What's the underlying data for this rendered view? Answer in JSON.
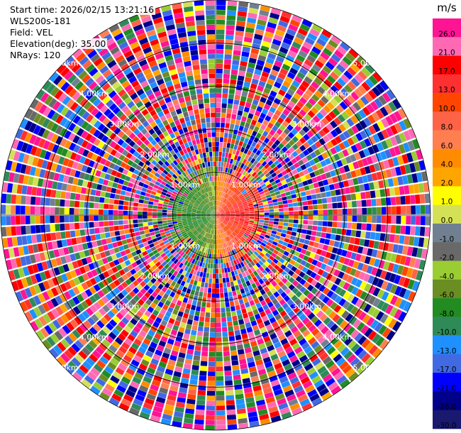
{
  "info": {
    "start_time": "Start time: 2026/02/15 13:21:16",
    "station": "WLS200s-181",
    "field": "Field: VEL",
    "elevation": "Elevation(deg): 35.00",
    "nrays": "NRays: 120"
  },
  "colorbar": {
    "unit": "m/s",
    "labels": [
      "26.0",
      "21.0",
      "17.0",
      "13.0",
      "10.0",
      "8.0",
      "6.0",
      "4.0",
      "2.0",
      "1.0",
      "0.0",
      "-1.0",
      "-2.0",
      "-4.0",
      "-6.0",
      "-8.0",
      "-10.0",
      "-13.0",
      "-17.0",
      "-21.0",
      "-26.0",
      "-30.0"
    ],
    "colors": [
      "#ff1493",
      "#ff69b4",
      "#ff0000",
      "#ff3030",
      "#ff4500",
      "#ff6347",
      "#ff7f50",
      "#ff8c00",
      "#ffa500",
      "#ffff00",
      "#d4e157",
      "#708090",
      "#696969",
      "#9acd32",
      "#6b8e23",
      "#228b22",
      "#2e8b57",
      "#1e90ff",
      "#4169e1",
      "#0000ff",
      "#00008b",
      "#191970"
    ]
  },
  "chart_data": {
    "type": "heatmap",
    "projection": "polar (PPI)",
    "field": "VEL",
    "units": "m/s",
    "elevation_deg": 35.0,
    "n_rays": 120,
    "max_range_km": 5.0,
    "range_ring_labels": [
      "1.00km",
      "2.00km",
      "3.00km",
      "4.00km",
      "5.00km"
    ],
    "note_values": "Near-range gates (< ~1.2 km): negative velocities (approx. -10 to -6 m/s) on the west half, positive velocities (approx. 2 to 13 m/s) on the east half; beyond ~1.2 km values are noisy across the full range -30 to 26 m/s."
  }
}
